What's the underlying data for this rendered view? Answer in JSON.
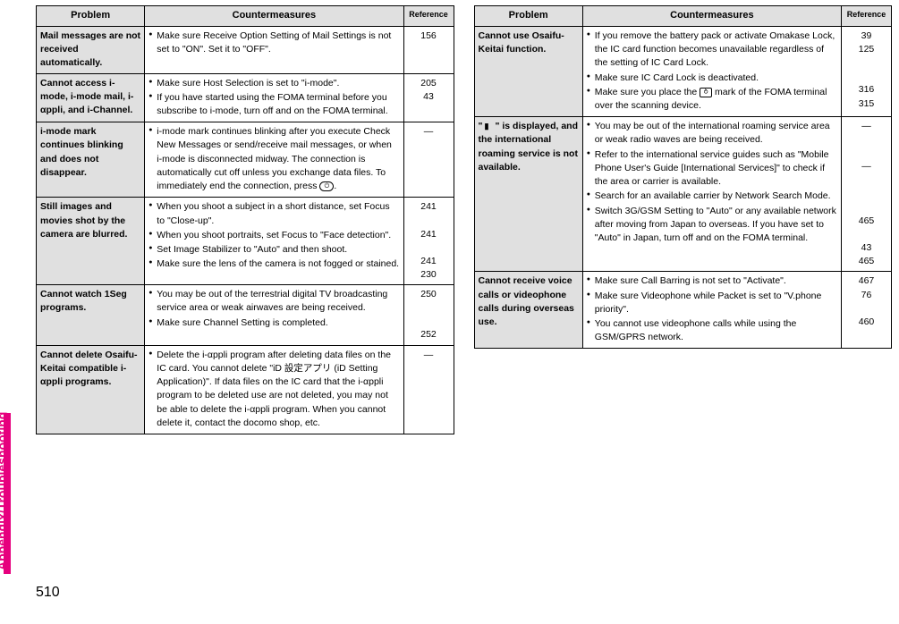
{
  "side_label": "Appendix/Troubleshooting",
  "page_number": "510",
  "headers": {
    "problem": "Problem",
    "countermeasures": "Countermeasures",
    "reference": "Reference"
  },
  "left": [
    {
      "problem": "Mail messages are not received automatically.",
      "cm": [
        "Make sure Receive Option Setting of Mail Settings is not set to \"ON\". Set it to \"OFF\"."
      ],
      "ref": [
        "156"
      ]
    },
    {
      "problem": "Cannot access i-mode, i-mode mail, i-αppli, and i-Channel.",
      "cm": [
        "Make sure Host Selection is set to \"i-mode\".",
        "If you have started using the FOMA terminal before you subscribe to i-mode, turn off and on the FOMA terminal."
      ],
      "ref": [
        "205",
        "43"
      ]
    },
    {
      "problem": "i-mode mark continues blinking and does not disappear.",
      "cm": [
        "i-mode mark continues blinking after you execute Check New Messages or send/receive mail messages, or when i-mode is disconnected midway. The connection is automatically cut off unless you exchange data files. To immediately end the connection, press __KEY__."
      ],
      "ref": [
        "—"
      ]
    },
    {
      "problem": "Still images and movies shot by the camera are blurred.",
      "cm": [
        "When you shoot a subject in a short distance, set Focus to \"Close-up\".",
        "When you shoot portraits, set Focus to \"Face detection\".",
        "Set Image Stabilizer to \"Auto\" and then shoot.",
        "Make sure the lens of the camera is not fogged or stained."
      ],
      "ref": [
        "241",
        "",
        "241",
        "",
        "241",
        "230"
      ]
    },
    {
      "problem": "Cannot watch 1Seg programs.",
      "cm": [
        "You may be out of the terrestrial digital TV broadcasting service area or weak airwaves are being received.",
        "Make sure Channel Setting is completed."
      ],
      "ref": [
        "250",
        "",
        "",
        "252"
      ]
    },
    {
      "problem": "Cannot delete Osaifu-Keitai compatible i-αppli programs.",
      "cm": [
        "Delete the i-αppli program after deleting data files on the IC card. You cannot delete \"iD 設定アプリ (iD Setting Application)\". If data files on the IC card that the i-αppli program to be deleted use are not deleted, you may not be able to delete the i-αppli program. When you cannot delete it, contact the docomo shop, etc."
      ],
      "ref": [
        "—"
      ]
    }
  ],
  "right": [
    {
      "problem": "Cannot use Osaifu-Keitai function.",
      "cm": [
        "If you remove the battery pack or activate Omakase Lock, the IC card function becomes unavailable regardless of the setting of IC Card Lock.",
        "Make sure IC Card Lock is deactivated.",
        "Make sure you place the __FELICA__ mark of the FOMA terminal over the scanning device."
      ],
      "ref": [
        "39",
        "125",
        "",
        "",
        "316",
        "315"
      ]
    },
    {
      "problem": "\"__ANT__\" is displayed, and the international roaming service is not available.",
      "cm": [
        "You may be out of the international roaming service area or weak radio waves are being received.",
        "Refer to the international service guides such as \"Mobile Phone User's Guide [International Services]\" to check if the area or carrier is available.",
        "Search for an available carrier by Network Search Mode.",
        "Switch 3G/GSM Setting to \"Auto\" or any available network after moving from Japan to overseas. If you have set to \"Auto\" in Japan, turn off and on the FOMA terminal."
      ],
      "ref": [
        "—",
        "",
        "",
        "—",
        "",
        "",
        "",
        "465",
        "",
        "43",
        "465"
      ]
    },
    {
      "problem": "Cannot receive voice calls or videophone calls during overseas use.",
      "cm": [
        "Make sure Call Barring is not set to \"Activate\".",
        "Make sure Videophone while Packet is set to \"V.phone priority\".",
        "You cannot use videophone calls while using the GSM/GPRS network."
      ],
      "ref": [
        "467",
        "76",
        "",
        "460"
      ]
    }
  ]
}
